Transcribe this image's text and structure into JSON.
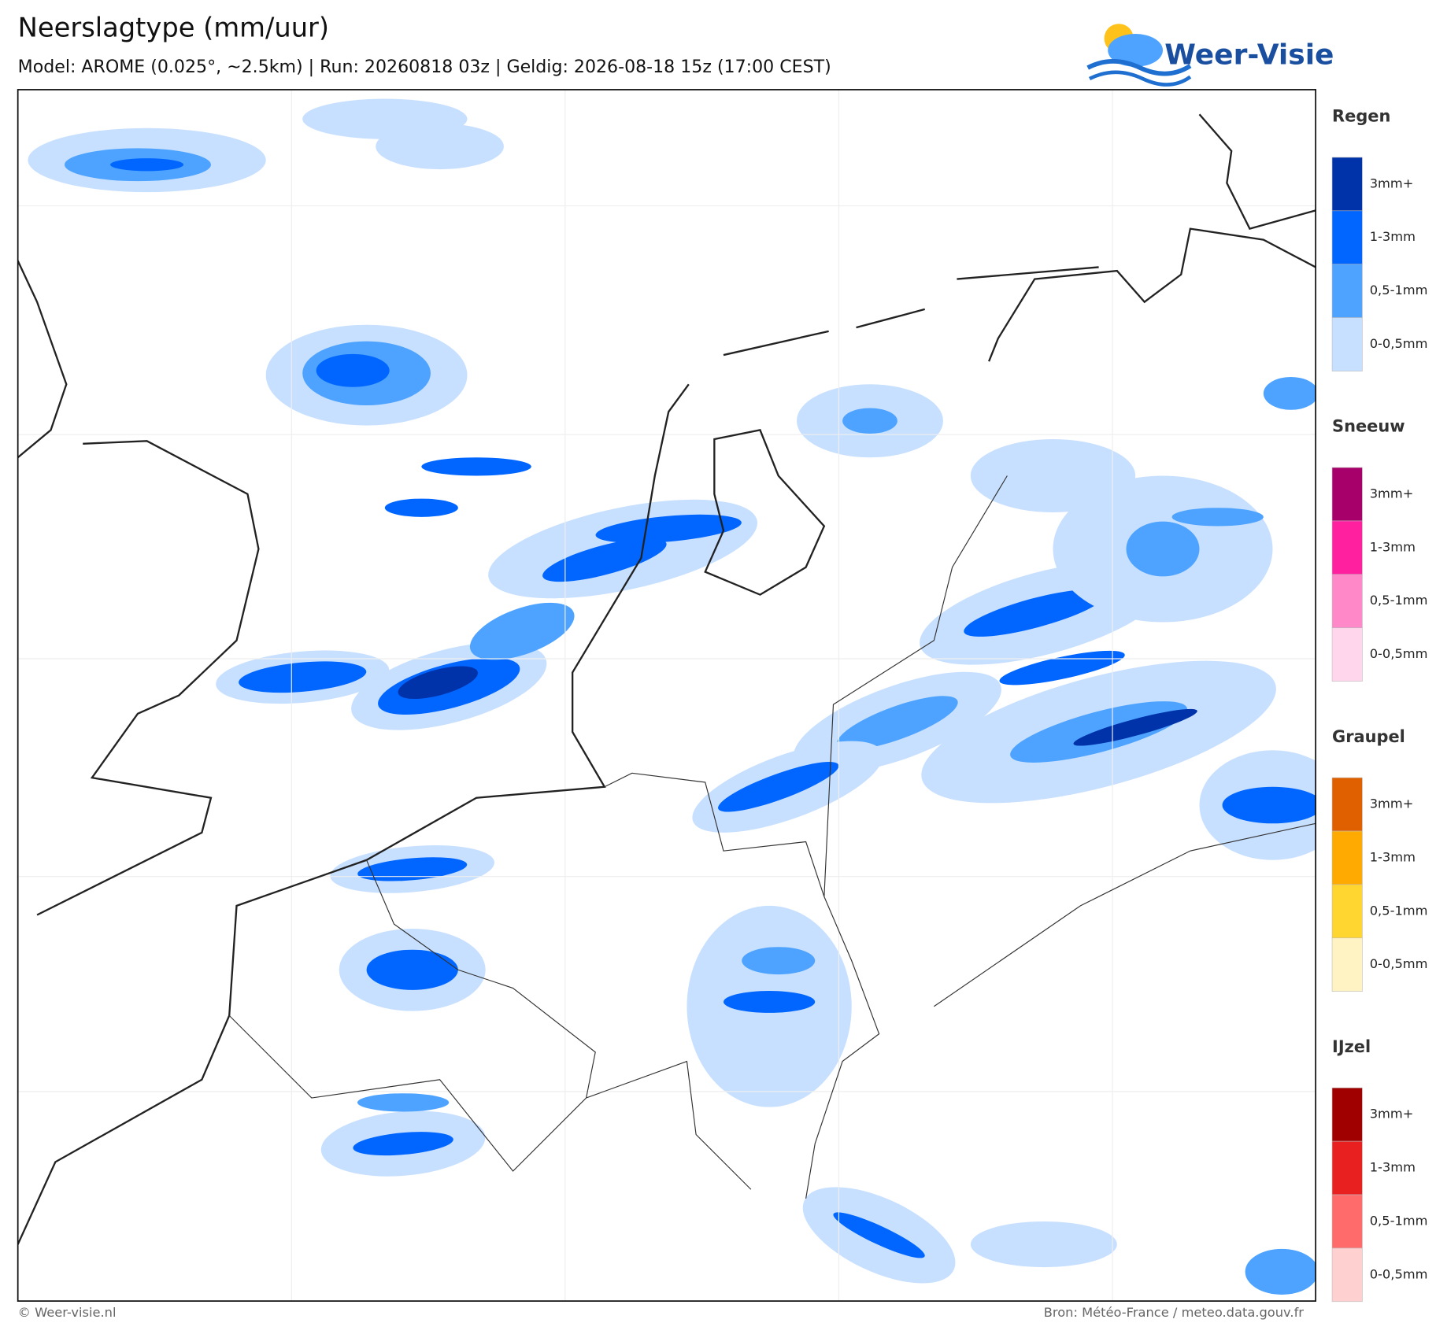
{
  "header": {
    "title": "Neerslagtype (mm/uur)",
    "subtitle": "Model: AROME (0.025°, ~2.5km)  |  Run: 20260818 03z  |  Geldig: 2026-08-18 15z (17:00 CEST)",
    "logo": "Weer-Visie"
  },
  "legend": [
    {
      "title": "Regen",
      "items": [
        {
          "label": "3mm+",
          "color": "#0033aa"
        },
        {
          "label": "1-3mm",
          "color": "#0066ff"
        },
        {
          "label": "0,5-1mm",
          "color": "#4da3ff"
        },
        {
          "label": "0-0,5mm",
          "color": "#c8e0ff"
        }
      ]
    },
    {
      "title": "Sneeuw",
      "items": [
        {
          "label": "3mm+",
          "color": "#a8006a"
        },
        {
          "label": "1-3mm",
          "color": "#ff20a0"
        },
        {
          "label": "0,5-1mm",
          "color": "#ff88c8"
        },
        {
          "label": "0-0,5mm",
          "color": "#ffd6ec"
        }
      ]
    },
    {
      "title": "Graupel",
      "items": [
        {
          "label": "3mm+",
          "color": "#e06000"
        },
        {
          "label": "1-3mm",
          "color": "#ffaa00"
        },
        {
          "label": "0,5-1mm",
          "color": "#ffd630"
        },
        {
          "label": "0-0,5mm",
          "color": "#fff3c4"
        }
      ]
    },
    {
      "title": "IJzel",
      "items": [
        {
          "label": "3mm+",
          "color": "#a00000"
        },
        {
          "label": "1-3mm",
          "color": "#e82020"
        },
        {
          "label": "0,5-1mm",
          "color": "#ff6a6a"
        },
        {
          "label": "0-0,5mm",
          "color": "#ffd0d0"
        }
      ]
    }
  ],
  "footer": {
    "left": "© Weer-visie.nl",
    "right": "Bron: Météo-France / meteo.data.gouv.fr"
  }
}
